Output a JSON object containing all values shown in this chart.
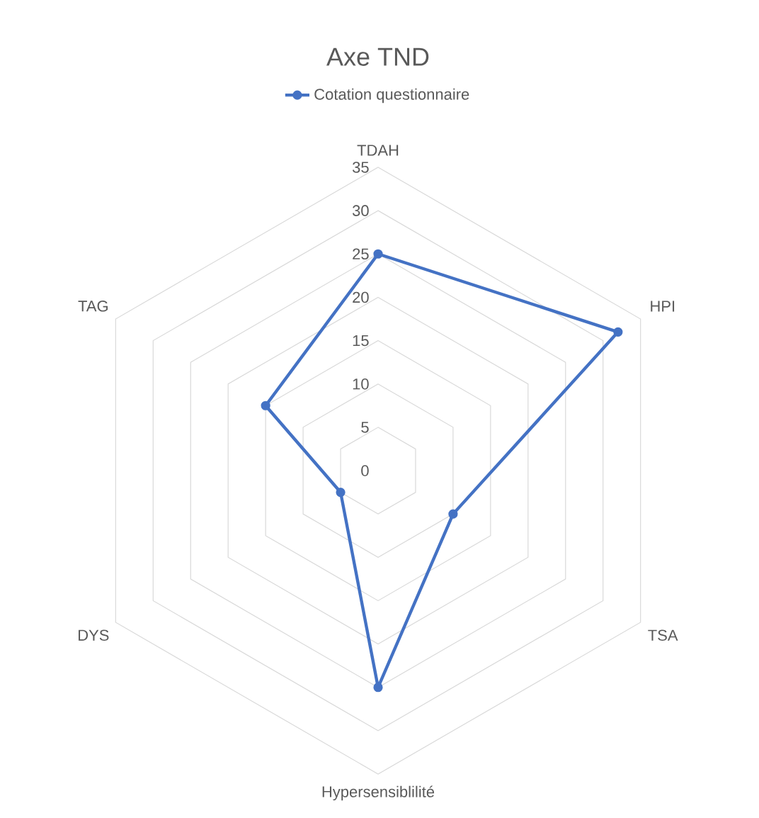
{
  "chart_data": {
    "type": "radar",
    "title": "Axe TND",
    "categories": [
      "TDAH",
      "HPI",
      "TSA",
      "Hypersensiblilité",
      "DYS",
      "TAG"
    ],
    "series": [
      {
        "name": "Cotation questionnaire",
        "color": "#4472c4",
        "values": [
          25,
          32,
          10,
          25,
          5,
          15
        ]
      }
    ],
    "ylim": [
      0,
      35
    ],
    "yticks": [
      0,
      5,
      10,
      15,
      20,
      25,
      30,
      35
    ],
    "grid": true,
    "legend": "top",
    "marker": "circle",
    "line_style": "solid"
  }
}
